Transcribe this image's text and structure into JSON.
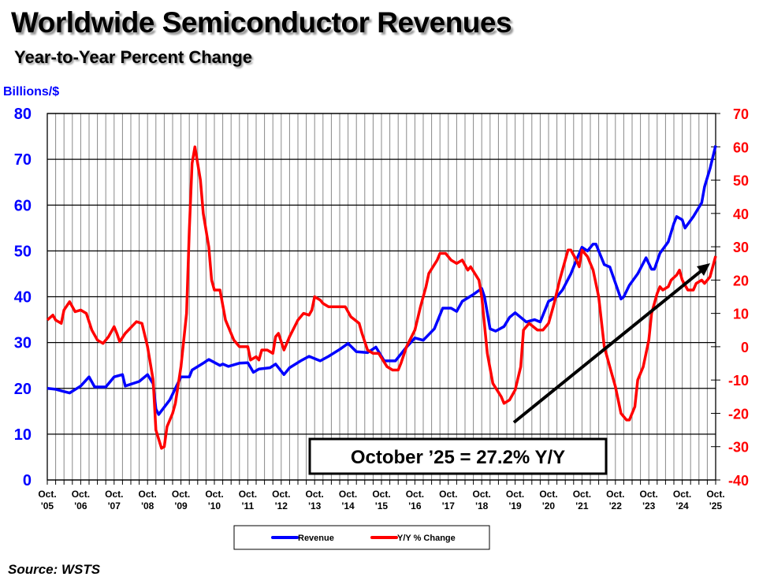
{
  "title": "Worldwide Semiconductor Revenues",
  "subtitle": "Year-to-Year Percent Change",
  "source": "Source: WSTS",
  "chart_data": {
    "type": "line",
    "title": "Worldwide Semiconductor Revenues",
    "subtitle": "Year-to-Year Percent Change",
    "ylabel_left": "Billions/$",
    "left_axis": {
      "range": [
        0,
        80
      ],
      "ticks": [
        "0",
        "10",
        "20",
        "30",
        "40",
        "50",
        "60",
        "70",
        "80"
      ],
      "color": "#0000ff"
    },
    "right_axis": {
      "range": [
        -40,
        70
      ],
      "ticks": [
        "-40",
        "-30",
        "-20",
        "-10",
        "0",
        "10",
        "20",
        "30",
        "40",
        "50",
        "60",
        "70"
      ],
      "color": "#ff0000"
    },
    "x_range": [
      "2005-10",
      "2025-10"
    ],
    "x_ticks": [
      {
        "date": "2005-10",
        "label": [
          "Oct.",
          "'05"
        ]
      },
      {
        "date": "2006-10",
        "label": [
          "Oct.",
          "'06"
        ]
      },
      {
        "date": "2007-10",
        "label": [
          "Oct.",
          "'07"
        ]
      },
      {
        "date": "2008-10",
        "label": [
          "Oct.",
          "'08"
        ]
      },
      {
        "date": "2009-10",
        "label": [
          "Oct.",
          "'09"
        ]
      },
      {
        "date": "2010-10",
        "label": [
          "Oct.",
          "'10"
        ]
      },
      {
        "date": "2011-10",
        "label": [
          "Oct.",
          "'11"
        ]
      },
      {
        "date": "2012-10",
        "label": [
          "Oct.",
          "'12"
        ]
      },
      {
        "date": "2013-10",
        "label": [
          "Oct.",
          "'13"
        ]
      },
      {
        "date": "2014-10",
        "label": [
          "Oct.",
          "'14"
        ]
      },
      {
        "date": "2015-10",
        "label": [
          "Oct.",
          "'15"
        ]
      },
      {
        "date": "2016-10",
        "label": [
          "Oct.",
          "'16"
        ]
      },
      {
        "date": "2017-10",
        "label": [
          "Oct.",
          "'17"
        ]
      },
      {
        "date": "2018-10",
        "label": [
          "Oct.",
          "'18"
        ]
      },
      {
        "date": "2019-10",
        "label": [
          "Oct.",
          "'19"
        ]
      },
      {
        "date": "2020-10",
        "label": [
          "Oct.",
          "'20"
        ]
      },
      {
        "date": "2021-10",
        "label": [
          "Oct.",
          "'21"
        ]
      },
      {
        "date": "2022-10",
        "label": [
          "Oct.",
          "'22"
        ]
      },
      {
        "date": "2023-10",
        "label": [
          "Oct.",
          "'23"
        ]
      },
      {
        "date": "2024-10",
        "label": [
          "Oct.",
          "'24"
        ]
      },
      {
        "date": "2025-10",
        "label": [
          "Oct.",
          "'25"
        ]
      }
    ],
    "grid": {
      "horizontal": true,
      "vertical": "quarterly"
    },
    "legend_position": "bottom",
    "annotation": "October ’25 = 27.2% Y/Y",
    "trend_arrow": true,
    "series": [
      {
        "name": "Revenue",
        "axis": "left",
        "color": "#0000ff",
        "points": [
          [
            "2005-10",
            20
          ],
          [
            "2006-01",
            19.8
          ],
          [
            "2006-04",
            19.3
          ],
          [
            "2006-06",
            19
          ],
          [
            "2006-10",
            20.5
          ],
          [
            "2007-01",
            22.5
          ],
          [
            "2007-03",
            20.3
          ],
          [
            "2007-07",
            20.3
          ],
          [
            "2007-10",
            22.5
          ],
          [
            "2008-01",
            23
          ],
          [
            "2008-02",
            20.5
          ],
          [
            "2008-07",
            21.5
          ],
          [
            "2008-10",
            23
          ],
          [
            "2008-12",
            21
          ],
          [
            "2009-01",
            15.5
          ],
          [
            "2009-02",
            14.3
          ],
          [
            "2009-06",
            17.5
          ],
          [
            "2009-10",
            22.5
          ],
          [
            "2010-01",
            22.5
          ],
          [
            "2010-02",
            24
          ],
          [
            "2010-06",
            25.5
          ],
          [
            "2010-08",
            26.3
          ],
          [
            "2010-12",
            25
          ],
          [
            "2011-01",
            25.3
          ],
          [
            "2011-03",
            24.8
          ],
          [
            "2011-07",
            25.5
          ],
          [
            "2011-10",
            25.6
          ],
          [
            "2011-12",
            23.5
          ],
          [
            "2012-02",
            24.2
          ],
          [
            "2012-06",
            24.5
          ],
          [
            "2012-08",
            25.3
          ],
          [
            "2012-11",
            23
          ],
          [
            "2013-01",
            24.5
          ],
          [
            "2013-05",
            26
          ],
          [
            "2013-08",
            27
          ],
          [
            "2013-12",
            26
          ],
          [
            "2014-03",
            27
          ],
          [
            "2014-07",
            28.5
          ],
          [
            "2014-10",
            29.8
          ],
          [
            "2015-01",
            28
          ],
          [
            "2015-05",
            27.8
          ],
          [
            "2015-08",
            29
          ],
          [
            "2015-11",
            26
          ],
          [
            "2016-03",
            26
          ],
          [
            "2016-07",
            29
          ],
          [
            "2016-10",
            31
          ],
          [
            "2017-01",
            30.5
          ],
          [
            "2017-05",
            33
          ],
          [
            "2017-08",
            37.5
          ],
          [
            "2017-11",
            37.5
          ],
          [
            "2018-01",
            36.8
          ],
          [
            "2018-03",
            39
          ],
          [
            "2018-07",
            40.5
          ],
          [
            "2018-10",
            41.8
          ],
          [
            "2018-11",
            40
          ],
          [
            "2019-01",
            33
          ],
          [
            "2019-03",
            32.5
          ],
          [
            "2019-06",
            33.5
          ],
          [
            "2019-08",
            35.5
          ],
          [
            "2019-10",
            36.5
          ],
          [
            "2019-12",
            35.5
          ],
          [
            "2020-02",
            34.5
          ],
          [
            "2020-05",
            35
          ],
          [
            "2020-07",
            34.5
          ],
          [
            "2020-10",
            39
          ],
          [
            "2021-01",
            40
          ],
          [
            "2021-03",
            41.5
          ],
          [
            "2021-06",
            45
          ],
          [
            "2021-08",
            48
          ],
          [
            "2021-10",
            50.8
          ],
          [
            "2021-12",
            50
          ],
          [
            "2022-02",
            51.5
          ],
          [
            "2022-03",
            51.5
          ],
          [
            "2022-06",
            47
          ],
          [
            "2022-08",
            46.5
          ],
          [
            "2022-12",
            39.5
          ],
          [
            "2023-01",
            40
          ],
          [
            "2023-03",
            42.5
          ],
          [
            "2023-06",
            45
          ],
          [
            "2023-09",
            48.5
          ],
          [
            "2023-11",
            46
          ],
          [
            "2023-12",
            46
          ],
          [
            "2024-02",
            49.5
          ],
          [
            "2024-05",
            52
          ],
          [
            "2024-07",
            56
          ],
          [
            "2024-08",
            57.5
          ],
          [
            "2024-10",
            56.8
          ],
          [
            "2024-11",
            55
          ],
          [
            "2025-02",
            57.5
          ],
          [
            "2025-05",
            60.5
          ],
          [
            "2025-06",
            64
          ],
          [
            "2025-08",
            68
          ],
          [
            "2025-10",
            73
          ]
        ]
      },
      {
        "name": "Y/Y % Change",
        "axis": "right",
        "color": "#ff0000",
        "points": [
          [
            "2005-10",
            8
          ],
          [
            "2005-12",
            9.5
          ],
          [
            "2006-01",
            8
          ],
          [
            "2006-03",
            7
          ],
          [
            "2006-04",
            11
          ],
          [
            "2006-06",
            13.5
          ],
          [
            "2006-08",
            10.5
          ],
          [
            "2006-10",
            11
          ],
          [
            "2006-12",
            10
          ],
          [
            "2007-02",
            5
          ],
          [
            "2007-04",
            2
          ],
          [
            "2007-06",
            1
          ],
          [
            "2007-08",
            3
          ],
          [
            "2007-10",
            6
          ],
          [
            "2007-11",
            4
          ],
          [
            "2007-12",
            1.5
          ],
          [
            "2008-02",
            4
          ],
          [
            "2008-06",
            7.5
          ],
          [
            "2008-08",
            7
          ],
          [
            "2008-10",
            0
          ],
          [
            "2008-12",
            -10
          ],
          [
            "2009-01",
            -25
          ],
          [
            "2009-03",
            -30.5
          ],
          [
            "2009-04",
            -30
          ],
          [
            "2009-05",
            -24
          ],
          [
            "2009-07",
            -20
          ],
          [
            "2009-08",
            -17
          ],
          [
            "2009-10",
            -6
          ],
          [
            "2009-12",
            10
          ],
          [
            "2010-01",
            35
          ],
          [
            "2010-02",
            55
          ],
          [
            "2010-03",
            60
          ],
          [
            "2010-05",
            50
          ],
          [
            "2010-06",
            40
          ],
          [
            "2010-08",
            30
          ],
          [
            "2010-09",
            20
          ],
          [
            "2010-10",
            17
          ],
          [
            "2010-12",
            17
          ],
          [
            "2011-02",
            8
          ],
          [
            "2011-05",
            2
          ],
          [
            "2011-07",
            0
          ],
          [
            "2011-10",
            0
          ],
          [
            "2011-11",
            -4
          ],
          [
            "2012-01",
            -3
          ],
          [
            "2012-02",
            -4
          ],
          [
            "2012-03",
            -1
          ],
          [
            "2012-05",
            -1
          ],
          [
            "2012-07",
            -2
          ],
          [
            "2012-08",
            3
          ],
          [
            "2012-09",
            4
          ],
          [
            "2012-11",
            -1
          ],
          [
            "2013-01",
            3
          ],
          [
            "2013-04",
            8
          ],
          [
            "2013-06",
            10
          ],
          [
            "2013-08",
            9.5
          ],
          [
            "2013-09",
            11
          ],
          [
            "2013-10",
            15
          ],
          [
            "2013-12",
            14
          ],
          [
            "2014-01",
            13
          ],
          [
            "2014-03",
            12
          ],
          [
            "2014-06",
            12
          ],
          [
            "2014-09",
            12
          ],
          [
            "2014-11",
            9
          ],
          [
            "2015-02",
            7
          ],
          [
            "2015-03",
            4
          ],
          [
            "2015-05",
            -1
          ],
          [
            "2015-07",
            -2
          ],
          [
            "2015-09",
            -2
          ],
          [
            "2015-12",
            -6
          ],
          [
            "2016-02",
            -7
          ],
          [
            "2016-04",
            -7
          ],
          [
            "2016-05",
            -5
          ],
          [
            "2016-07",
            0
          ],
          [
            "2016-10",
            5
          ],
          [
            "2016-12",
            12
          ],
          [
            "2017-02",
            18
          ],
          [
            "2017-03",
            22
          ],
          [
            "2017-06",
            26
          ],
          [
            "2017-07",
            28
          ],
          [
            "2017-09",
            28
          ],
          [
            "2017-11",
            26
          ],
          [
            "2018-01",
            25
          ],
          [
            "2018-03",
            26
          ],
          [
            "2018-05",
            23
          ],
          [
            "2018-06",
            24
          ],
          [
            "2018-09",
            20
          ],
          [
            "2018-10",
            15
          ],
          [
            "2018-12",
            -2
          ],
          [
            "2019-02",
            -11
          ],
          [
            "2019-05",
            -15
          ],
          [
            "2019-06",
            -17
          ],
          [
            "2019-08",
            -16
          ],
          [
            "2019-10",
            -13
          ],
          [
            "2019-12",
            -6
          ],
          [
            "2020-01",
            5
          ],
          [
            "2020-03",
            7
          ],
          [
            "2020-06",
            5
          ],
          [
            "2020-08",
            5
          ],
          [
            "2020-10",
            7
          ],
          [
            "2020-12",
            13
          ],
          [
            "2021-02",
            20
          ],
          [
            "2021-05",
            29
          ],
          [
            "2021-06",
            29
          ],
          [
            "2021-08",
            26
          ],
          [
            "2021-09",
            24
          ],
          [
            "2021-10",
            29
          ],
          [
            "2021-12",
            27
          ],
          [
            "2022-02",
            23
          ],
          [
            "2022-04",
            15
          ],
          [
            "2022-06",
            0
          ],
          [
            "2022-08",
            -6
          ],
          [
            "2022-10",
            -12
          ],
          [
            "2022-12",
            -20
          ],
          [
            "2023-02",
            -22
          ],
          [
            "2023-03",
            -22
          ],
          [
            "2023-05",
            -18
          ],
          [
            "2023-06",
            -10
          ],
          [
            "2023-08",
            -6
          ],
          [
            "2023-10",
            2
          ],
          [
            "2023-11",
            10
          ],
          [
            "2024-01",
            16
          ],
          [
            "2024-02",
            18
          ],
          [
            "2024-03",
            17
          ],
          [
            "2024-05",
            18
          ],
          [
            "2024-06",
            20
          ],
          [
            "2024-08",
            21.5
          ],
          [
            "2024-09",
            23
          ],
          [
            "2024-10",
            20
          ],
          [
            "2024-12",
            17
          ],
          [
            "2025-02",
            17
          ],
          [
            "2025-03",
            19
          ],
          [
            "2025-05",
            20
          ],
          [
            "2025-06",
            19
          ],
          [
            "2025-08",
            21
          ],
          [
            "2025-10",
            27.2
          ]
        ]
      }
    ]
  }
}
